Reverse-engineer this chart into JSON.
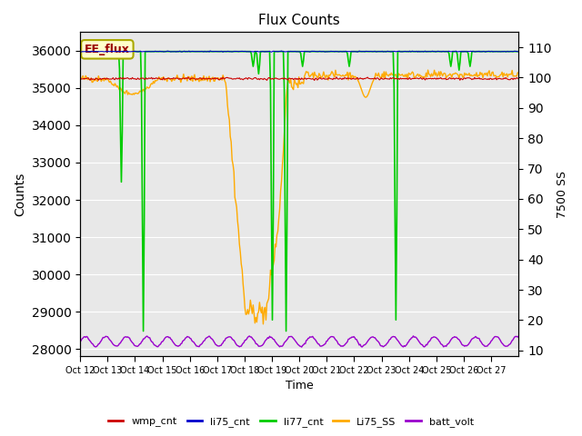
{
  "title": "Flux Counts",
  "xlabel": "Time",
  "ylabel_left": "Counts",
  "ylabel_right": "7500 SS",
  "x_tick_labels": [
    "Oct 12",
    "Oct 13",
    "Oct 14",
    "Oct 15",
    "Oct 16",
    "Oct 17",
    "Oct 18",
    "Oct 19",
    "Oct 20",
    "Oct 21",
    "Oct 22",
    "Oct 23",
    "Oct 24",
    "Oct 25",
    "Oct 26",
    "Oct 27"
  ],
  "ylim_left": [
    27800,
    36500
  ],
  "ylim_right": [
    8,
    115
  ],
  "yticks_left": [
    28000,
    29000,
    30000,
    31000,
    32000,
    33000,
    34000,
    35000,
    36000
  ],
  "yticks_right": [
    10,
    20,
    30,
    40,
    50,
    60,
    70,
    80,
    90,
    100,
    110
  ],
  "colors": {
    "wmp_cnt": "#cc0000",
    "li75_cnt": "#0000cc",
    "li77_cnt": "#00cc00",
    "Li75_SS": "#ffaa00",
    "batt_volt": "#9900cc"
  },
  "bg_color": "#e8e8e8",
  "annotation_text": "EE_flux",
  "annotation_bg": "#ffffcc"
}
